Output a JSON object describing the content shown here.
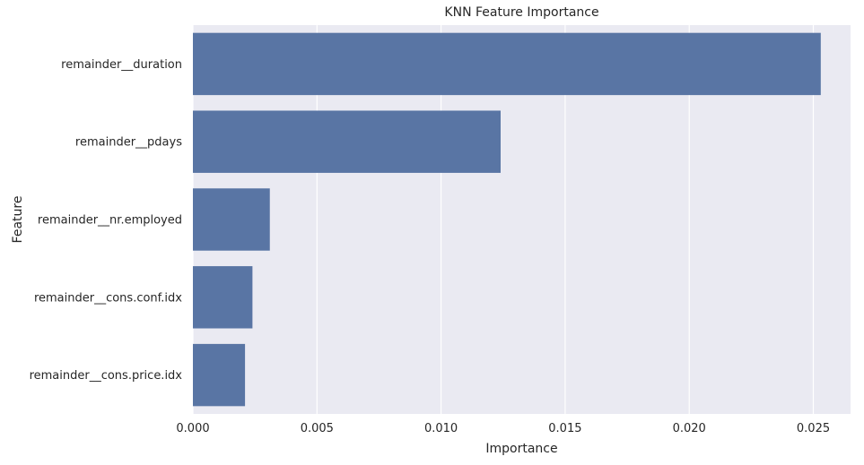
{
  "chart_data": {
    "type": "bar",
    "orientation": "horizontal",
    "title": "KNN Feature Importance",
    "xlabel": "Importance",
    "ylabel": "Feature",
    "categories": [
      "remainder__duration",
      "remainder__pdays",
      "remainder__nr.employed",
      "remainder__cons.conf.idx",
      "remainder__cons.price.idx"
    ],
    "values": [
      0.0253,
      0.0124,
      0.0031,
      0.0024,
      0.0021
    ],
    "xlim": [
      0,
      0.0265
    ],
    "xticks": [
      0.0,
      0.005,
      0.01,
      0.015,
      0.02,
      0.025
    ],
    "xtick_labels": [
      "0.000",
      "0.005",
      "0.010",
      "0.015",
      "0.020",
      "0.025"
    ],
    "grid": true,
    "colors": {
      "bar": "#5975a4",
      "plot_background": "#eaeaf2",
      "grid": "#ffffff",
      "text": "#262626"
    }
  }
}
